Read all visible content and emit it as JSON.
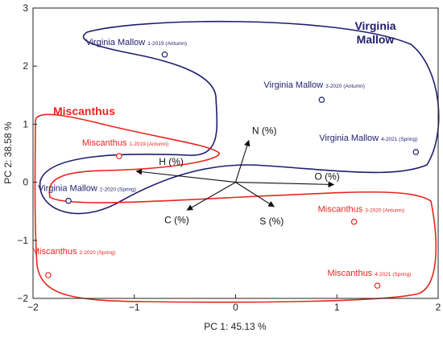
{
  "chart_data": {
    "type": "scatter",
    "title": "",
    "xlabel": "PC 1: 45.13 %",
    "ylabel": "PC 2: 38.58 %",
    "xlim": [
      -2,
      2
    ],
    "ylim": [
      -2,
      3
    ],
    "xticks": [
      "−2",
      "−1",
      "0",
      "1",
      "2"
    ],
    "yticks": [
      "−2",
      "−1",
      "0",
      "1",
      "2",
      "3"
    ],
    "grid": false,
    "series": [
      {
        "name": "Virginia Mallow",
        "color": "#1f1d6e",
        "points": [
          {
            "label": "Virginia Mallow",
            "sub": "1-2019 (Antumn)",
            "x": -0.7,
            "y": 2.2
          },
          {
            "label": "Virginia Mallow",
            "sub": "3-2020 (Antumn)",
            "x": 0.85,
            "y": 1.42
          },
          {
            "label": "Virginia Mallow",
            "sub": "4-2021 (Spring)",
            "x": 1.78,
            "y": 0.52
          },
          {
            "label": "Virginia Mallow",
            "sub": "2-2020 (Spring)",
            "x": -1.65,
            "y": -0.32
          }
        ]
      },
      {
        "name": "Miscanthus",
        "color": "#e8251e",
        "points": [
          {
            "label": "Miscanthus",
            "sub": "1-2019 (Antumn)",
            "x": -1.15,
            "y": 0.45
          },
          {
            "label": "Miscanthus",
            "sub": "3-2020 (Antumn)",
            "x": 1.17,
            "y": -0.68
          },
          {
            "label": "Miscanthus",
            "sub": "2-2020 (Spring)",
            "x": -1.85,
            "y": -1.6
          },
          {
            "label": "Miscanthus",
            "sub": "4-2021 (Spring)",
            "x": 1.4,
            "y": -1.78
          }
        ]
      }
    ],
    "variables": [
      {
        "name": "N (%)",
        "x": 0.13,
        "y": 0.72
      },
      {
        "name": "O (%)",
        "x": 0.97,
        "y": -0.04
      },
      {
        "name": "H (%)",
        "x": -0.98,
        "y": 0.19
      },
      {
        "name": "C (%)",
        "x": -0.48,
        "y": -0.48
      },
      {
        "name": "S (%)",
        "x": 0.38,
        "y": -0.42
      }
    ],
    "group_labels": [
      {
        "text": "Virginia Mallow",
        "color": "#1f1d6e"
      },
      {
        "text": "Miscanthus",
        "color": "#e8251e"
      }
    ]
  }
}
